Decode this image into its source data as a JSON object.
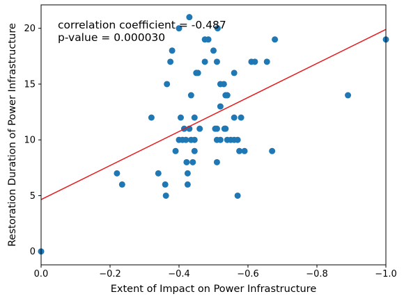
{
  "chart_data": {
    "type": "scatter",
    "xlabel": "Extent of Impact on Power Infrastructure",
    "ylabel": "Restoration Duration of Power Infrastructure",
    "xlim": [
      0,
      -1.0
    ],
    "ylim": [
      -1.2,
      22.1
    ],
    "x_axis_inverted": true,
    "grid": false,
    "x_ticks": [
      0.0,
      -0.2,
      -0.4,
      -0.6,
      -0.8,
      -1.0
    ],
    "x_tick_labels": [
      "0.0",
      "−0.2",
      "−0.4",
      "−0.6",
      "−0.8",
      "−1.0"
    ],
    "y_ticks": [
      0,
      5,
      10,
      15,
      20
    ],
    "y_tick_labels": [
      "0",
      "5",
      "10",
      "15",
      "20"
    ],
    "annotations": [
      "correlation coefficient = -0.487",
      "p-value = 0.000030"
    ],
    "point_color": "#1f77b4",
    "line_color": "#e8191c",
    "series": [
      {
        "points": [
          {
            "x": 0.0,
            "y": 0
          },
          {
            "x": -0.22,
            "y": 7
          },
          {
            "x": -0.235,
            "y": 6
          },
          {
            "x": -0.32,
            "y": 12
          },
          {
            "x": -0.34,
            "y": 7
          },
          {
            "x": -0.36,
            "y": 6
          },
          {
            "x": -0.362,
            "y": 5
          },
          {
            "x": -0.365,
            "y": 15
          },
          {
            "x": -0.375,
            "y": 17
          },
          {
            "x": -0.38,
            "y": 18
          },
          {
            "x": -0.39,
            "y": 9
          },
          {
            "x": -0.4,
            "y": 20
          },
          {
            "x": -0.4,
            "y": 10
          },
          {
            "x": -0.405,
            "y": 12
          },
          {
            "x": -0.41,
            "y": 10
          },
          {
            "x": -0.415,
            "y": 11
          },
          {
            "x": -0.42,
            "y": 10
          },
          {
            "x": -0.422,
            "y": 8
          },
          {
            "x": -0.425,
            "y": 7
          },
          {
            "x": -0.425,
            "y": 6
          },
          {
            "x": -0.43,
            "y": 21
          },
          {
            "x": -0.43,
            "y": 11
          },
          {
            "x": -0.435,
            "y": 10
          },
          {
            "x": -0.435,
            "y": 14
          },
          {
            "x": -0.44,
            "y": 8
          },
          {
            "x": -0.445,
            "y": 12
          },
          {
            "x": -0.445,
            "y": 10
          },
          {
            "x": -0.445,
            "y": 9
          },
          {
            "x": -0.45,
            "y": 16
          },
          {
            "x": -0.455,
            "y": 16
          },
          {
            "x": -0.46,
            "y": 11
          },
          {
            "x": -0.475,
            "y": 19
          },
          {
            "x": -0.475,
            "y": 17
          },
          {
            "x": -0.485,
            "y": 19
          },
          {
            "x": -0.5,
            "y": 18
          },
          {
            "x": -0.505,
            "y": 11
          },
          {
            "x": -0.51,
            "y": 17
          },
          {
            "x": -0.51,
            "y": 10
          },
          {
            "x": -0.51,
            "y": 8
          },
          {
            "x": -0.51,
            "y": 11
          },
          {
            "x": -0.512,
            "y": 20
          },
          {
            "x": -0.52,
            "y": 15
          },
          {
            "x": -0.52,
            "y": 13
          },
          {
            "x": -0.52,
            "y": 10
          },
          {
            "x": -0.53,
            "y": 15
          },
          {
            "x": -0.532,
            "y": 11
          },
          {
            "x": -0.535,
            "y": 14
          },
          {
            "x": -0.535,
            "y": 11
          },
          {
            "x": -0.54,
            "y": 14
          },
          {
            "x": -0.54,
            "y": 10
          },
          {
            "x": -0.55,
            "y": 10
          },
          {
            "x": -0.56,
            "y": 16
          },
          {
            "x": -0.56,
            "y": 12
          },
          {
            "x": -0.56,
            "y": 10
          },
          {
            "x": -0.57,
            "y": 10
          },
          {
            "x": -0.57,
            "y": 5
          },
          {
            "x": -0.575,
            "y": 9
          },
          {
            "x": -0.58,
            "y": 12
          },
          {
            "x": -0.59,
            "y": 9
          },
          {
            "x": -0.61,
            "y": 17
          },
          {
            "x": -0.62,
            "y": 17
          },
          {
            "x": -0.655,
            "y": 17
          },
          {
            "x": -0.67,
            "y": 9
          },
          {
            "x": -0.678,
            "y": 19
          },
          {
            "x": -0.89,
            "y": 14
          },
          {
            "x": -1.0,
            "y": 19
          }
        ]
      }
    ],
    "regression_line": {
      "x": [
        0.0,
        -1.0
      ],
      "y": [
        4.65,
        19.9
      ]
    }
  }
}
